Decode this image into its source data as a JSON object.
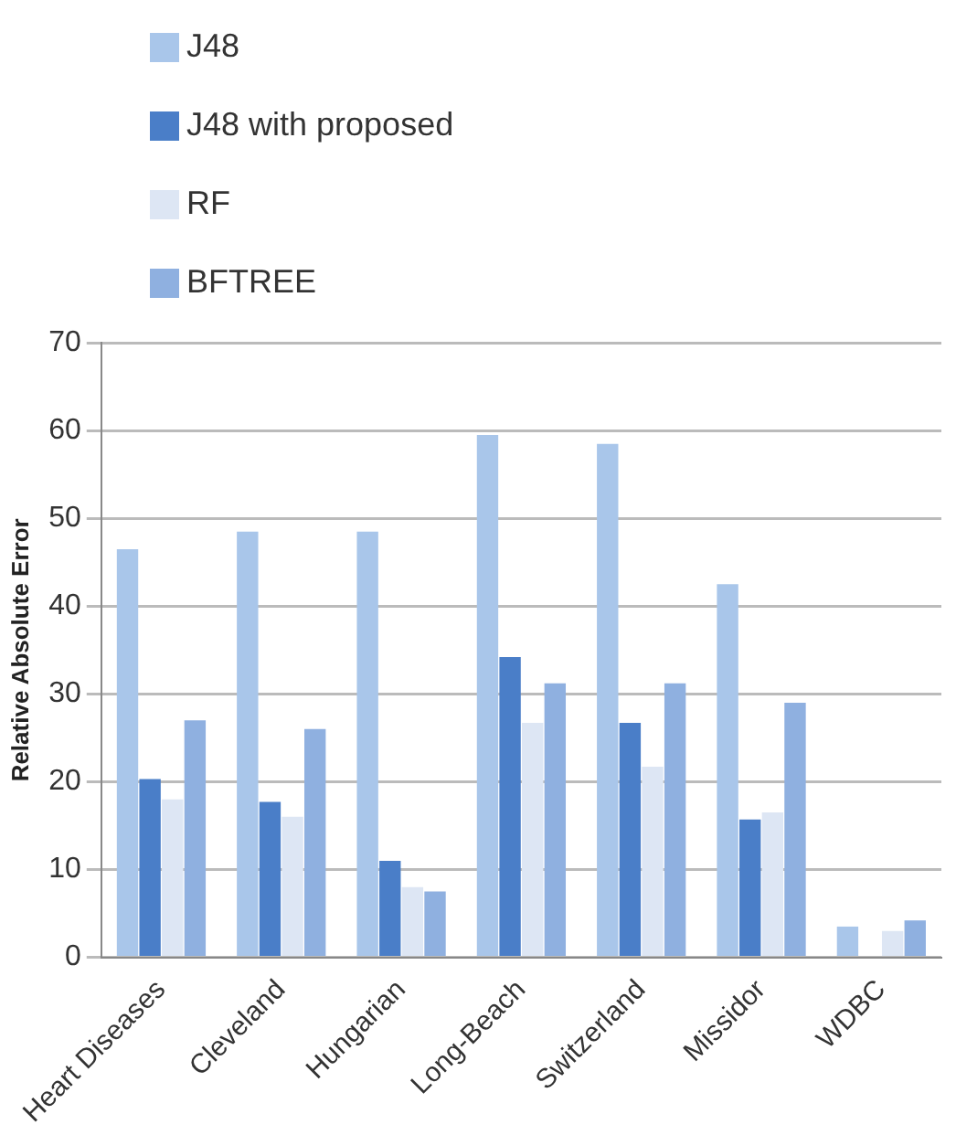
{
  "chart_data": {
    "type": "bar",
    "ylabel": "Relative Absolute Error",
    "categories": [
      "Heart Diseases",
      "Cleveland",
      "Hungarian",
      "Long-Beach",
      "Switzerland",
      "Missidor",
      "WDBC"
    ],
    "series": [
      {
        "name": "J48",
        "color": "#a9c6ea",
        "values": [
          46.5,
          48.5,
          48.5,
          59.5,
          58.5,
          42.5,
          3.5
        ]
      },
      {
        "name": "J48 with proposed",
        "color": "#4a7ec8",
        "values": [
          20.3,
          17.7,
          11,
          34.2,
          26.7,
          15.7,
          0
        ]
      },
      {
        "name": "RF",
        "color": "#dde6f4",
        "values": [
          18,
          16,
          8,
          26.7,
          21.7,
          16.5,
          3
        ]
      },
      {
        "name": "BFTREE",
        "color": "#8fb0e0",
        "values": [
          27,
          26,
          7.5,
          31.2,
          31.2,
          29,
          4.2
        ]
      }
    ],
    "ylim": [
      0,
      70
    ],
    "yticks": [
      0,
      10,
      20,
      30,
      40,
      50,
      60,
      70
    ],
    "grid": "y",
    "legend": "top left"
  }
}
